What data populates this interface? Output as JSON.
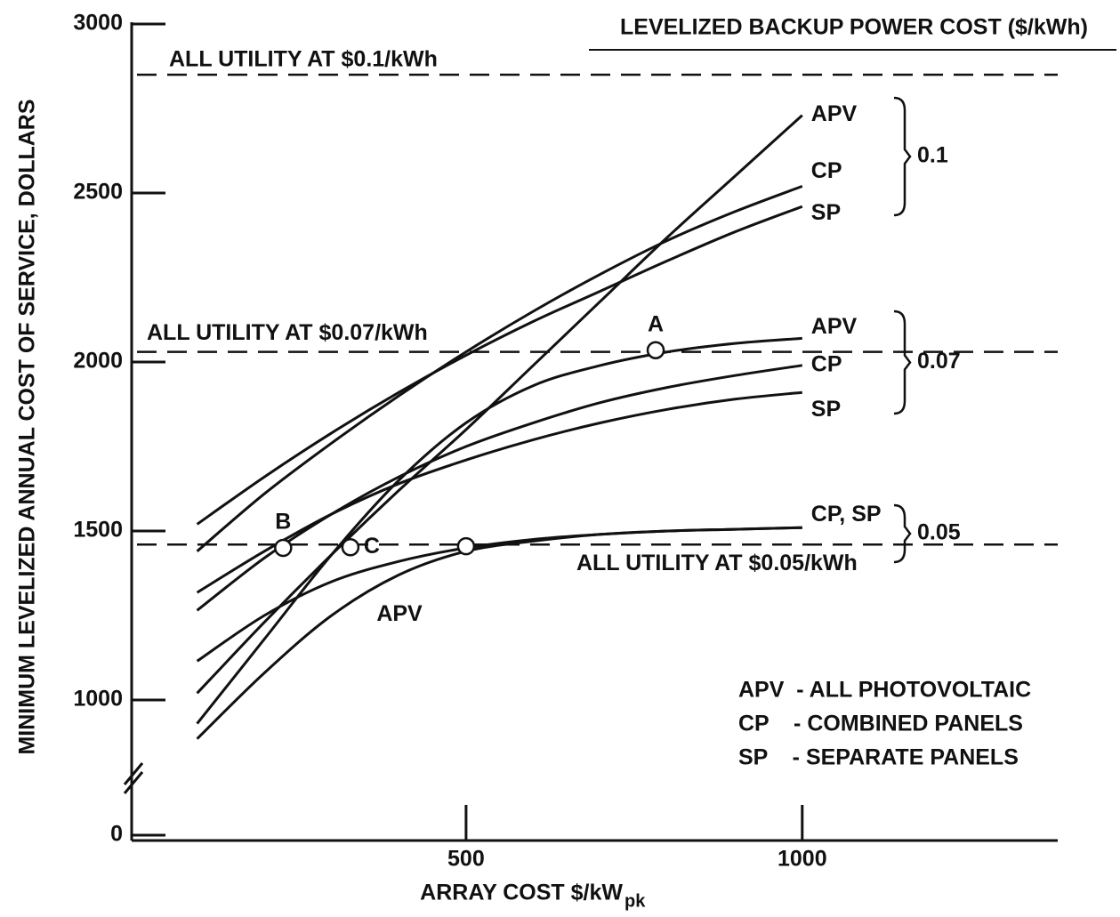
{
  "chart_data": {
    "type": "line",
    "header": "LEVELIZED BACKUP POWER COST ($/kWh)",
    "y_label": "MINIMUM LEVELIZED ANNUAL COST OF SERVICE, DOLLARS",
    "x_label": "ARRAY COST $/kW",
    "x_label_subscript": "pk",
    "xlim": [
      0,
      1380
    ],
    "xticks": [
      500,
      1000
    ],
    "ylim": [
      600,
      3000
    ],
    "yticks": [
      0,
      1000,
      1500,
      2000,
      2500,
      3000
    ],
    "y_axis_break": true,
    "color": "#111111",
    "x": [
      100,
      200,
      300,
      400,
      500,
      600,
      700,
      800,
      900,
      1000
    ],
    "groups": [
      {
        "label": "0.1",
        "series": [
          {
            "name": "APV",
            "values": [
              1020,
              1230,
              1430,
              1620,
              1800,
              1990,
              2180,
              2370,
              2550,
              2730
            ]
          },
          {
            "name": "CP",
            "values": [
              1440,
              1610,
              1760,
              1900,
              2030,
              2150,
              2260,
              2360,
              2445,
              2520
            ]
          },
          {
            "name": "SP",
            "values": [
              1520,
              1660,
              1790,
              1910,
              2020,
              2120,
              2210,
              2300,
              2385,
              2460
            ]
          }
        ]
      },
      {
        "label": "0.07",
        "series": [
          {
            "name": "APV",
            "values": [
              930,
              1180,
              1430,
              1650,
              1820,
              1930,
              1990,
              2030,
              2055,
              2070
            ]
          },
          {
            "name": "CP",
            "values": [
              1265,
              1420,
              1550,
              1660,
              1750,
              1820,
              1880,
              1925,
              1960,
              1990
            ]
          },
          {
            "name": "SP",
            "values": [
              1318,
              1440,
              1550,
              1640,
              1710,
              1770,
              1820,
              1860,
              1890,
              1910
            ]
          }
        ]
      },
      {
        "label": "0.05",
        "series": [
          {
            "name": "CP, SP",
            "values": [
              1115,
              1250,
              1350,
              1410,
              1450,
              1475,
              1490,
              1500,
              1505,
              1510
            ]
          },
          {
            "name": "APV",
            "values": [
              885,
              1080,
              1250,
              1370,
              1440,
              1470,
              1490,
              1500,
              1505,
              1510
            ]
          }
        ]
      }
    ],
    "reference_lines": [
      {
        "label": "ALL UTILITY AT $0.1/kWh",
        "value": 2850
      },
      {
        "label": "ALL UTILITY AT $0.07/kWh",
        "value": 2030
      },
      {
        "label": "ALL UTILITY AT $0.05/kWh",
        "value": 1460
      }
    ],
    "points": [
      {
        "label": "A",
        "x": 782,
        "y": 2035
      },
      {
        "label": "B",
        "x": 228,
        "y": 1450
      },
      {
        "label": "C",
        "x": 328,
        "y": 1452
      },
      {
        "label": null,
        "x": 500,
        "y": 1455
      }
    ],
    "legend": [
      "APV  - ALL PHOTOVOLTAIC",
      "CP    - COMBINED PANELS",
      "SP    - SEPARATE PANELS"
    ]
  }
}
